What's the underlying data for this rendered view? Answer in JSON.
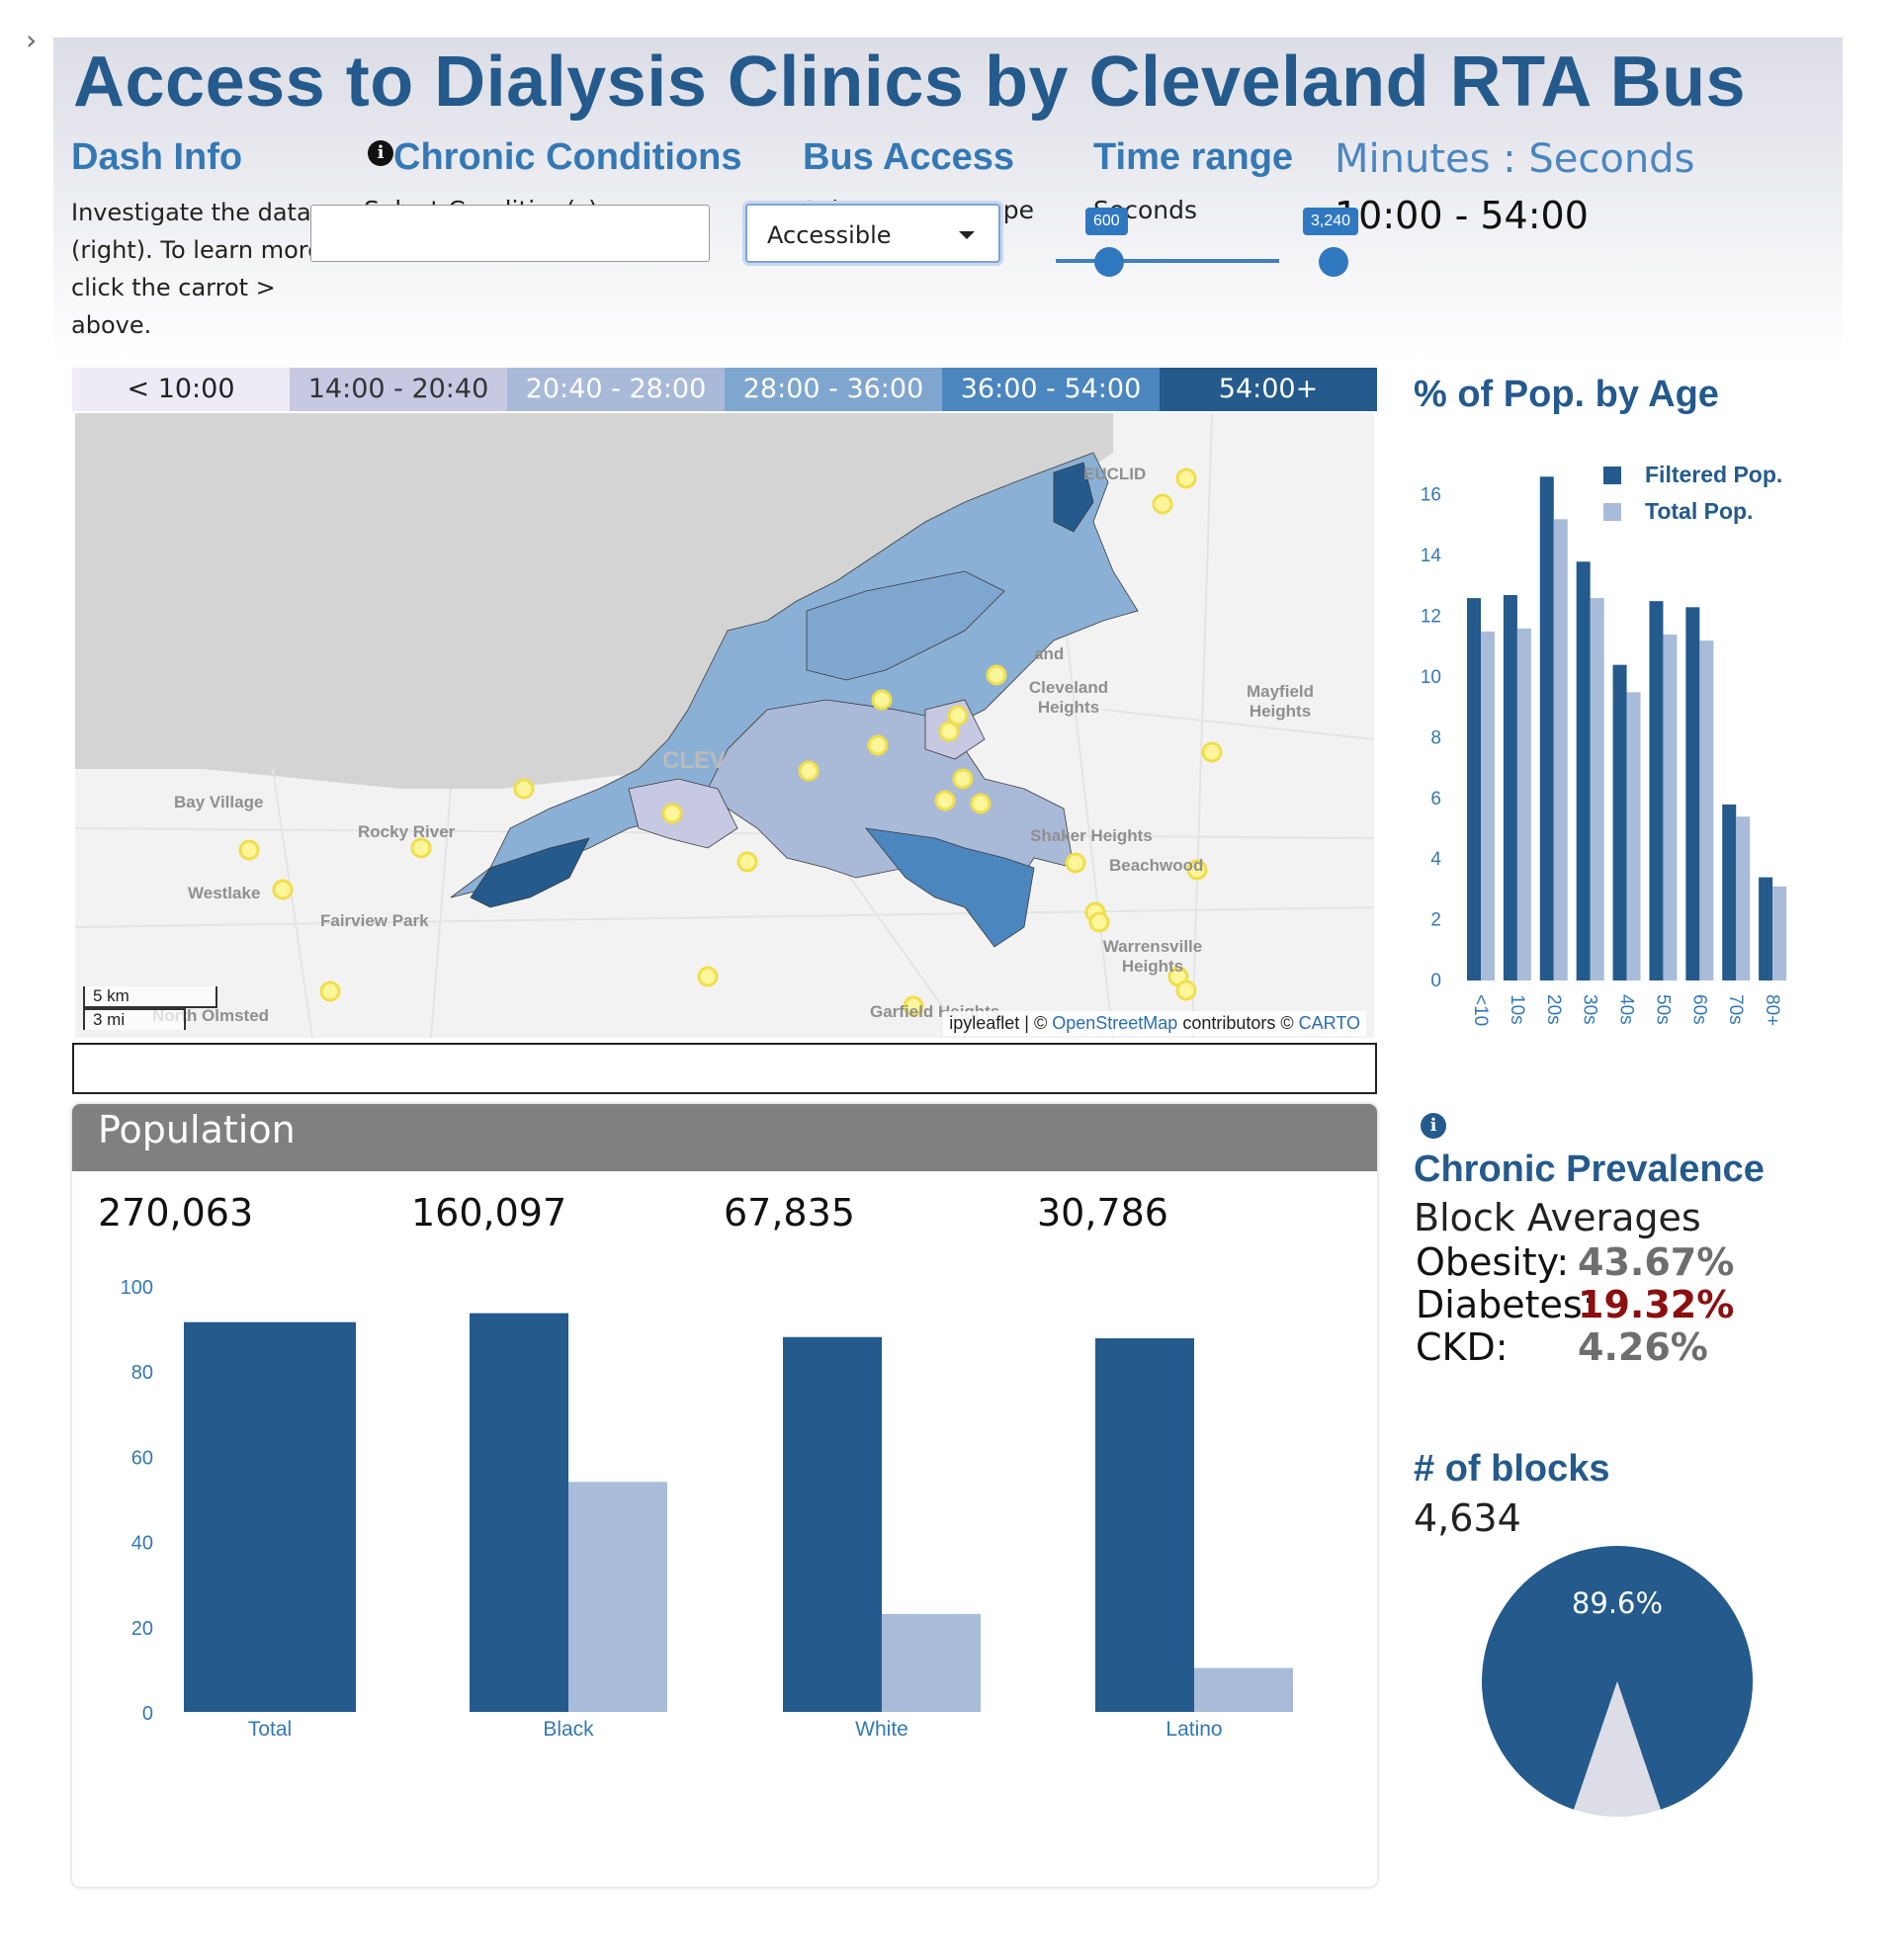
{
  "app": {
    "title": "Access to Dialysis Clinics by Cleveland RTA Bus",
    "carrot": "›"
  },
  "dash_info": {
    "heading": "Dash Info",
    "lines": [
      "Investigate the data",
      "(right). To learn more",
      "click the carrot >",
      "above."
    ]
  },
  "chronic_conditions": {
    "heading": "Chronic Conditions",
    "label": "Select Condition(s):",
    "value": "",
    "info_icon": "info-icon"
  },
  "bus_access": {
    "heading": "Bus Access",
    "label": "Select Access Type",
    "selected": "Accessible"
  },
  "time_range": {
    "heading": "Time range",
    "label": "Seconds",
    "min_label": "600",
    "max_label": "3,240",
    "min": 600,
    "max": 3240
  },
  "minutes_seconds": {
    "label": "Minutes : Seconds",
    "value": "10:00 - 54:00"
  },
  "legend": [
    {
      "label": "< 10:00",
      "bg": "#eeebf6",
      "fg": "#222222"
    },
    {
      "label": "14:00 - 20:40",
      "bg": "#c7c8e2",
      "fg": "#333333"
    },
    {
      "label": "20:40 - 28:00",
      "bg": "#a9b9d8",
      "fg": "#ffffff"
    },
    {
      "label": "28:00 - 36:00",
      "bg": "#7fa6cf",
      "fg": "#ffffff"
    },
    {
      "label": "36:00 - 54:00",
      "bg": "#4b86bf",
      "fg": "#ffffff"
    },
    {
      "label": "54:00+",
      "bg": "#245a8c",
      "fg": "#ffffff"
    }
  ],
  "map": {
    "labels": [
      "EUCLID",
      "and",
      "Cleveland Heights",
      "Mayfield Heights",
      "CLEV",
      "Bay Village",
      "Rocky River",
      "Westlake",
      "Fairview Park",
      "Shaker Heights",
      "Beachwood",
      "Warrensville Heights",
      "North Olmsted",
      "Garfield Heights"
    ],
    "scale_km": "5 km",
    "scale_mi": "3 mi",
    "attribution_prefix": "ipyleaflet | © ",
    "attribution_osm": "OpenStreetMap",
    "attribution_mid": " contributors © ",
    "attribution_carto": "CARTO"
  },
  "population": {
    "heading": "Population",
    "counts": [
      "270,063",
      "160,097",
      "67,835",
      "30,786"
    ]
  },
  "age_chart_title": "% of Pop. by Age",
  "prevalence": {
    "heading": "Chronic Prevalence",
    "subheading": "Block Averages",
    "rows": [
      {
        "label": "Obesity:",
        "value": "43.67%",
        "color": "#6e6e6e"
      },
      {
        "label": "Diabetes:",
        "value": "19.32%",
        "color": "#8b1010"
      },
      {
        "label": "CKD:",
        "value": "4.26%",
        "color": "#6e6e6e"
      }
    ]
  },
  "blocks": {
    "heading": "# of blocks",
    "value": "4,634",
    "pie_label": "89.6%"
  },
  "colors": {
    "dark": "#245a8c",
    "light": "#a8bcd9",
    "accent": "#3478b5",
    "pie_rest": "#dcdde6"
  },
  "chart_data": [
    {
      "type": "bar",
      "title": "% of Pop. by Age",
      "categories": [
        "<10",
        "10s",
        "20s",
        "30s",
        "40s",
        "50s",
        "60s",
        "70s",
        "80+"
      ],
      "series": [
        {
          "name": "Filtered Pop.",
          "values": [
            12.6,
            12.7,
            16.6,
            13.8,
            10.4,
            12.5,
            12.3,
            5.8,
            3.4
          ]
        },
        {
          "name": "Total Pop.",
          "values": [
            11.5,
            11.6,
            15.2,
            12.6,
            9.5,
            11.4,
            11.2,
            5.4,
            3.1
          ]
        }
      ],
      "ylim": [
        0,
        17
      ],
      "yticks": [
        0,
        2,
        4,
        6,
        8,
        10,
        12,
        14,
        16
      ],
      "legend": "top-right"
    },
    {
      "type": "bar",
      "categories": [
        "Total",
        "Black",
        "White",
        "Latino"
      ],
      "series": [
        {
          "values": [
            91.5,
            93.6,
            88.0,
            87.7
          ]
        },
        {
          "values": [
            null,
            54.0,
            23.0,
            10.3
          ]
        }
      ],
      "ylim": [
        0,
        100
      ],
      "yticks": [
        0,
        20,
        40,
        60,
        80,
        100
      ]
    },
    {
      "type": "pie",
      "slices": [
        {
          "label": "89.6%",
          "value": 89.6
        },
        {
          "label": "",
          "value": 10.4
        }
      ]
    }
  ]
}
